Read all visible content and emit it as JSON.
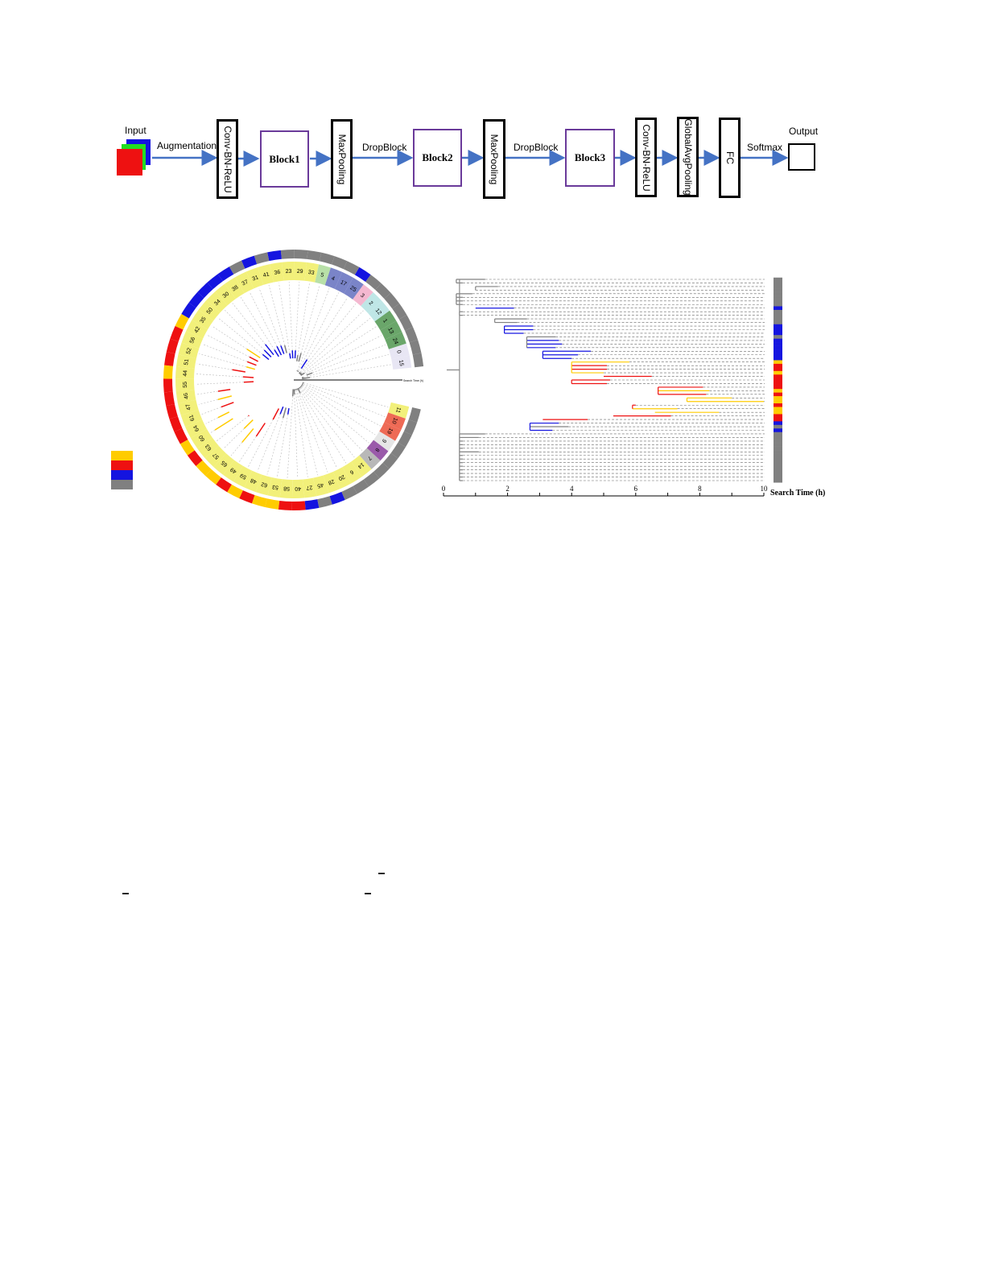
{
  "pipeline": {
    "input_label": "Input",
    "output_label": "Output",
    "edge_labels": {
      "augmentation": "Augmentation",
      "dropblock1": "DropBlock",
      "dropblock2": "DropBlock",
      "softmax": "Softmax"
    },
    "stages": [
      "Conv-BN-ReLU",
      "Block1",
      "MaxPooling",
      "Block2",
      "MaxPooling",
      "Block3",
      "Conv-BN-ReLU",
      "GlobalAvgPooling",
      "FC"
    ],
    "arrow_color": "#4472c4",
    "block_border_color": "#6a3a9a"
  },
  "colors": {
    "yellow": "#ffcc00",
    "red": "#ee1111",
    "blue": "#1414e0",
    "gray": "#808080"
  },
  "legend": [
    "yellow",
    "red",
    "blue",
    "gray"
  ],
  "circular_tree": {
    "scale_label": "Search Time (h)",
    "leaves": [
      {
        "label": "15",
        "group": "#e8e6f4",
        "outer": "gray"
      },
      {
        "label": "0",
        "group": "#e8e6f4",
        "outer": "gray"
      },
      {
        "label": "24",
        "group": "#6aa66a",
        "outer": "gray"
      },
      {
        "label": "13",
        "group": "#6aa66a",
        "outer": "gray"
      },
      {
        "label": "1",
        "group": "#6aa66a",
        "outer": "gray"
      },
      {
        "label": "12",
        "group": "#bfe6e6",
        "outer": "gray"
      },
      {
        "label": "2",
        "group": "#bfe6e6",
        "outer": "gray"
      },
      {
        "label": "3",
        "group": "#f4b8d0",
        "outer": "gray"
      },
      {
        "label": "25",
        "group": "#7a84c8",
        "outer": "blue"
      },
      {
        "label": "17",
        "group": "#7a84c8",
        "outer": "gray"
      },
      {
        "label": "4",
        "group": "#7a84c8",
        "outer": "gray"
      },
      {
        "label": "5",
        "group": "#b8e0a8",
        "outer": "gray"
      },
      {
        "label": "33",
        "group": "#f2f07a",
        "outer": "gray"
      },
      {
        "label": "29",
        "group": "#f2f07a",
        "outer": "gray"
      },
      {
        "label": "23",
        "group": "#f2f07a",
        "outer": "gray"
      },
      {
        "label": "36",
        "group": "#f2f07a",
        "outer": "blue"
      },
      {
        "label": "41",
        "group": "#f2f07a",
        "outer": "gray"
      },
      {
        "label": "31",
        "group": "#f2f07a",
        "outer": "blue"
      },
      {
        "label": "37",
        "group": "#f2f07a",
        "outer": "gray"
      },
      {
        "label": "38",
        "group": "#f2f07a",
        "outer": "blue"
      },
      {
        "label": "30",
        "group": "#f2f07a",
        "outer": "blue"
      },
      {
        "label": "34",
        "group": "#f2f07a",
        "outer": "blue"
      },
      {
        "label": "50",
        "group": "#f2f07a",
        "outer": "blue"
      },
      {
        "label": "35",
        "group": "#f2f07a",
        "outer": "blue"
      },
      {
        "label": "42",
        "group": "#f2f07a",
        "outer": "yellow"
      },
      {
        "label": "56",
        "group": "#f2f07a",
        "outer": "red"
      },
      {
        "label": "52",
        "group": "#f2f07a",
        "outer": "red"
      },
      {
        "label": "51",
        "group": "#f2f07a",
        "outer": "red"
      },
      {
        "label": "44",
        "group": "#f2f07a",
        "outer": "yellow"
      },
      {
        "label": "55",
        "group": "#f2f07a",
        "outer": "red"
      },
      {
        "label": "46",
        "group": "#f2f07a",
        "outer": "red"
      },
      {
        "label": "47",
        "group": "#f2f07a",
        "outer": "red"
      },
      {
        "label": "61",
        "group": "#f2f07a",
        "outer": "red"
      },
      {
        "label": "64",
        "group": "#f2f07a",
        "outer": "red"
      },
      {
        "label": "60",
        "group": "#f2f07a",
        "outer": "yellow"
      },
      {
        "label": "63",
        "group": "#f2f07a",
        "outer": "red"
      },
      {
        "label": "57",
        "group": "#f2f07a",
        "outer": "yellow"
      },
      {
        "label": "65",
        "group": "#f2f07a",
        "outer": "yellow"
      },
      {
        "label": "49",
        "group": "#f2f07a",
        "outer": "red"
      },
      {
        "label": "59",
        "group": "#f2f07a",
        "outer": "yellow"
      },
      {
        "label": "48",
        "group": "#f2f07a",
        "outer": "red"
      },
      {
        "label": "62",
        "group": "#f2f07a",
        "outer": "yellow"
      },
      {
        "label": "53",
        "group": "#f2f07a",
        "outer": "yellow"
      },
      {
        "label": "58",
        "group": "#f2f07a",
        "outer": "red"
      },
      {
        "label": "40",
        "group": "#f2f07a",
        "outer": "red"
      },
      {
        "label": "27",
        "group": "#f2f07a",
        "outer": "blue"
      },
      {
        "label": "45",
        "group": "#f2f07a",
        "outer": "gray"
      },
      {
        "label": "28",
        "group": "#f2f07a",
        "outer": "blue"
      },
      {
        "label": "20",
        "group": "#f2f07a",
        "outer": "gray"
      },
      {
        "label": "6",
        "group": "#f2f07a",
        "outer": "gray"
      },
      {
        "label": "14",
        "group": "#f2f07a",
        "outer": "gray"
      },
      {
        "label": "7",
        "group": "#b8b8b8",
        "outer": "gray"
      },
      {
        "label": "8",
        "group": "#9a5aaa",
        "outer": "gray"
      },
      {
        "label": "9",
        "group": "#e6e6e6",
        "outer": "gray"
      },
      {
        "label": "19",
        "group": "#ee6a55",
        "outer": "gray"
      },
      {
        "label": "10",
        "group": "#ee6a55",
        "outer": "gray"
      },
      {
        "label": "11",
        "group": "#f2f07a",
        "outer": "gray"
      }
    ]
  },
  "chart_data": {
    "type": "dendrogram",
    "xlabel": "Search Time (h)",
    "xlim": [
      0,
      10
    ],
    "xticks": [
      "0",
      "2",
      "4",
      "6",
      "8",
      "10"
    ],
    "leaves": [
      {
        "c": "gray",
        "from": 0.4,
        "to": 1.3
      },
      {
        "c": "gray",
        "from": 0.4,
        "to": 0.6
      },
      {
        "c": "gray",
        "from": 1.0,
        "to": 1.7
      },
      {
        "c": "gray",
        "from": 1.0,
        "to": 1.0
      },
      {
        "c": "gray",
        "from": 0.4,
        "to": 0.9
      },
      {
        "c": "gray",
        "from": 0.4,
        "to": 0.6
      },
      {
        "c": "gray",
        "from": 0.4,
        "to": 0.6
      },
      {
        "c": "gray",
        "from": 0.4,
        "to": 0.6
      },
      {
        "c": "blue",
        "from": 1.0,
        "to": 2.2
      },
      {
        "c": "gray",
        "from": 0.5,
        "to": 0.6
      },
      {
        "c": "gray",
        "from": 0.5,
        "to": 0.6
      },
      {
        "c": "gray",
        "from": 1.6,
        "to": 2.6
      },
      {
        "c": "gray",
        "from": 1.6,
        "to": 2.3
      },
      {
        "c": "blue",
        "from": 1.9,
        "to": 2.8
      },
      {
        "c": "blue",
        "from": 1.9,
        "to": 2.8
      },
      {
        "c": "blue",
        "from": 1.9,
        "to": 2.5
      },
      {
        "c": "gray",
        "from": 2.6,
        "to": 3.5
      },
      {
        "c": "blue",
        "from": 2.6,
        "to": 3.6
      },
      {
        "c": "blue",
        "from": 2.6,
        "to": 3.7
      },
      {
        "c": "blue",
        "from": 2.6,
        "to": 3.5
      },
      {
        "c": "blue",
        "from": 3.1,
        "to": 4.6
      },
      {
        "c": "blue",
        "from": 3.1,
        "to": 4.2
      },
      {
        "c": "blue",
        "from": 3.1,
        "to": 4.0
      },
      {
        "c": "yellow",
        "from": 4.0,
        "to": 5.8
      },
      {
        "c": "red",
        "from": 4.0,
        "to": 5.1
      },
      {
        "c": "red",
        "from": 4.0,
        "to": 5.1
      },
      {
        "c": "yellow",
        "from": 4.0,
        "to": 5.0
      },
      {
        "c": "red",
        "from": 5.0,
        "to": 6.5
      },
      {
        "c": "red",
        "from": 4.0,
        "to": 5.2
      },
      {
        "c": "red",
        "from": 4.0,
        "to": 5.1
      },
      {
        "c": "red",
        "from": 6.7,
        "to": 8.1
      },
      {
        "c": "yellow",
        "from": 6.7,
        "to": 8.3
      },
      {
        "c": "red",
        "from": 6.7,
        "to": 8.2
      },
      {
        "c": "yellow",
        "from": 7.6,
        "to": 9.0
      },
      {
        "c": "yellow",
        "from": 7.6,
        "to": 10.0
      },
      {
        "c": "red",
        "from": 5.9,
        "to": 6.0
      },
      {
        "c": "yellow",
        "from": 5.9,
        "to": 7.3
      },
      {
        "c": "yellow",
        "from": 6.6,
        "to": 8.6
      },
      {
        "c": "red",
        "from": 5.3,
        "to": 7.1
      },
      {
        "c": "red",
        "from": 3.1,
        "to": 4.5
      },
      {
        "c": "blue",
        "from": 2.7,
        "to": 3.6
      },
      {
        "c": "gray",
        "from": 2.7,
        "to": 3.9
      },
      {
        "c": "blue",
        "from": 2.7,
        "to": 3.4
      },
      {
        "c": "gray",
        "from": 0.5,
        "to": 1.3
      },
      {
        "c": "gray",
        "from": 0.5,
        "to": 1.1
      },
      {
        "c": "gray",
        "from": 0.5,
        "to": 0.6
      },
      {
        "c": "gray",
        "from": 0.5,
        "to": 0.6
      },
      {
        "c": "gray",
        "from": 0.5,
        "to": 0.6
      },
      {
        "c": "gray",
        "from": 0.5,
        "to": 1.1
      },
      {
        "c": "gray",
        "from": 0.5,
        "to": 0.6
      },
      {
        "c": "gray",
        "from": 0.5,
        "to": 0.6
      },
      {
        "c": "gray",
        "from": 0.5,
        "to": 0.6
      },
      {
        "c": "gray",
        "from": 0.5,
        "to": 0.6
      },
      {
        "c": "gray",
        "from": 0.5,
        "to": 0.6
      },
      {
        "c": "gray",
        "from": 0.5,
        "to": 0.6
      },
      {
        "c": "gray",
        "from": 0.5,
        "to": 0.6
      },
      {
        "c": "gray",
        "from": 0.5,
        "to": 0.6
      }
    ]
  }
}
